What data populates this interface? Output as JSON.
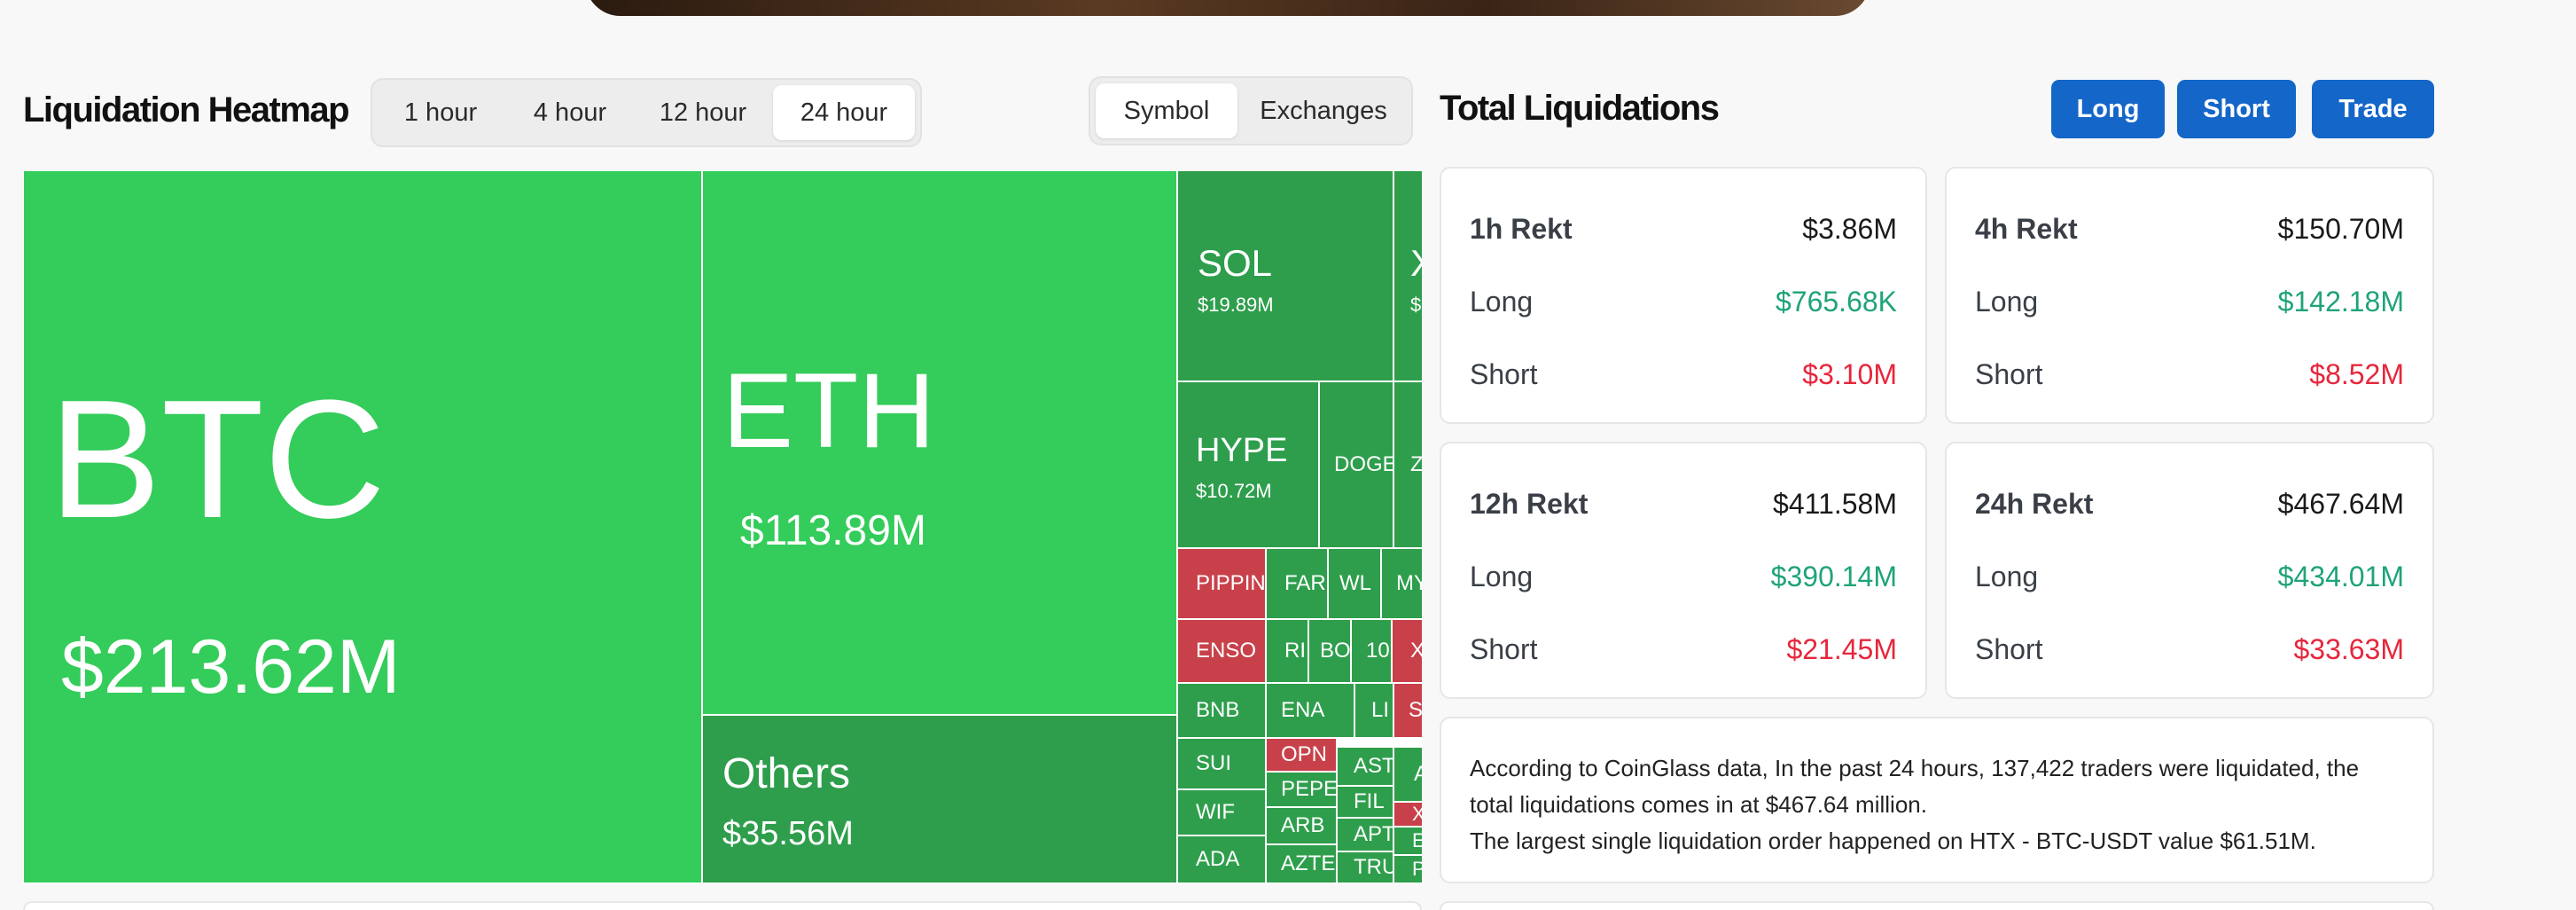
{
  "heatmap": {
    "title": "Liquidation Heatmap",
    "time_tabs": [
      "1 hour",
      "4 hour",
      "12 hour",
      "24 hour"
    ],
    "active_time_tab": "24 hour",
    "view_tabs": [
      "Symbol",
      "Exchanges"
    ],
    "active_view_tab": "Symbol",
    "tiles": {
      "btc": {
        "symbol": "BTC",
        "value": "$213.62M"
      },
      "eth": {
        "symbol": "ETH",
        "value": "$113.89M"
      },
      "others": {
        "symbol": "Others",
        "value": "$35.56M"
      },
      "sol": {
        "symbol": "SOL",
        "value": "$19.89M"
      },
      "x": {
        "symbol": "X",
        "value": "$"
      },
      "hype": {
        "symbol": "HYPE",
        "value": "$10.72M"
      },
      "doge": {
        "symbol": "DOGE"
      },
      "z": {
        "symbol": "Z"
      },
      "pippin": {
        "symbol": "PIPPIN"
      },
      "far": {
        "symbol": "FAR"
      },
      "wl": {
        "symbol": "WL"
      },
      "my": {
        "symbol": "MY"
      },
      "enso": {
        "symbol": "ENSO"
      },
      "ri": {
        "symbol": "RI"
      },
      "bo": {
        "symbol": "BO"
      },
      "n10": {
        "symbol": "10"
      },
      "xr": {
        "symbol": "X"
      },
      "bnb": {
        "symbol": "BNB"
      },
      "ena": {
        "symbol": "ENA"
      },
      "li": {
        "symbol": "LI"
      },
      "si": {
        "symbol": "SI"
      },
      "sui": {
        "symbol": "SUI"
      },
      "opn": {
        "symbol": "OPN"
      },
      "ast": {
        "symbol": "AST"
      },
      "a": {
        "symbol": "A"
      },
      "wif": {
        "symbol": "WIF"
      },
      "pepe": {
        "symbol": "PEPE"
      },
      "fil": {
        "symbol": "FIL"
      },
      "xa": {
        "symbol": "XA"
      },
      "ada": {
        "symbol": "ADA"
      },
      "arb": {
        "symbol": "ARB"
      },
      "apt": {
        "symbol": "APT"
      },
      "et": {
        "symbol": "ET"
      },
      "azte": {
        "symbol": "AZTE"
      },
      "tru": {
        "symbol": "TRU"
      },
      "pi": {
        "symbol": "PI"
      }
    }
  },
  "totals": {
    "title": "Total Liquidations",
    "buttons": {
      "long": "Long",
      "short": "Short",
      "trade": "Trade"
    },
    "cards": [
      {
        "title": "1h Rekt",
        "total": "$3.86M",
        "long_label": "Long",
        "long": "$765.68K",
        "short_label": "Short",
        "short": "$3.10M"
      },
      {
        "title": "4h Rekt",
        "total": "$150.70M",
        "long_label": "Long",
        "long": "$142.18M",
        "short_label": "Short",
        "short": "$8.52M"
      },
      {
        "title": "12h Rekt",
        "total": "$411.58M",
        "long_label": "Long",
        "long": "$390.14M",
        "short_label": "Short",
        "short": "$21.45M"
      },
      {
        "title": "24h Rekt",
        "total": "$467.64M",
        "long_label": "Long",
        "long": "$434.01M",
        "short_label": "Short",
        "short": "$33.63M"
      }
    ],
    "summary_line1": "According to CoinGlass data, In the past 24 hours, 137,422 traders were liquidated, the total liquidations comes in at $467.64 million.",
    "summary_line2": "The largest single liquidation order happened on HTX - BTC-USDT value $61.51M."
  },
  "colors": {
    "long_green": "#1fa37a",
    "short_red": "#e5273c",
    "accent_blue": "#1466c8",
    "tile_green": "#34cc5a",
    "tile_dark_green": "#2e9e4c",
    "tile_red": "#c8414a"
  }
}
